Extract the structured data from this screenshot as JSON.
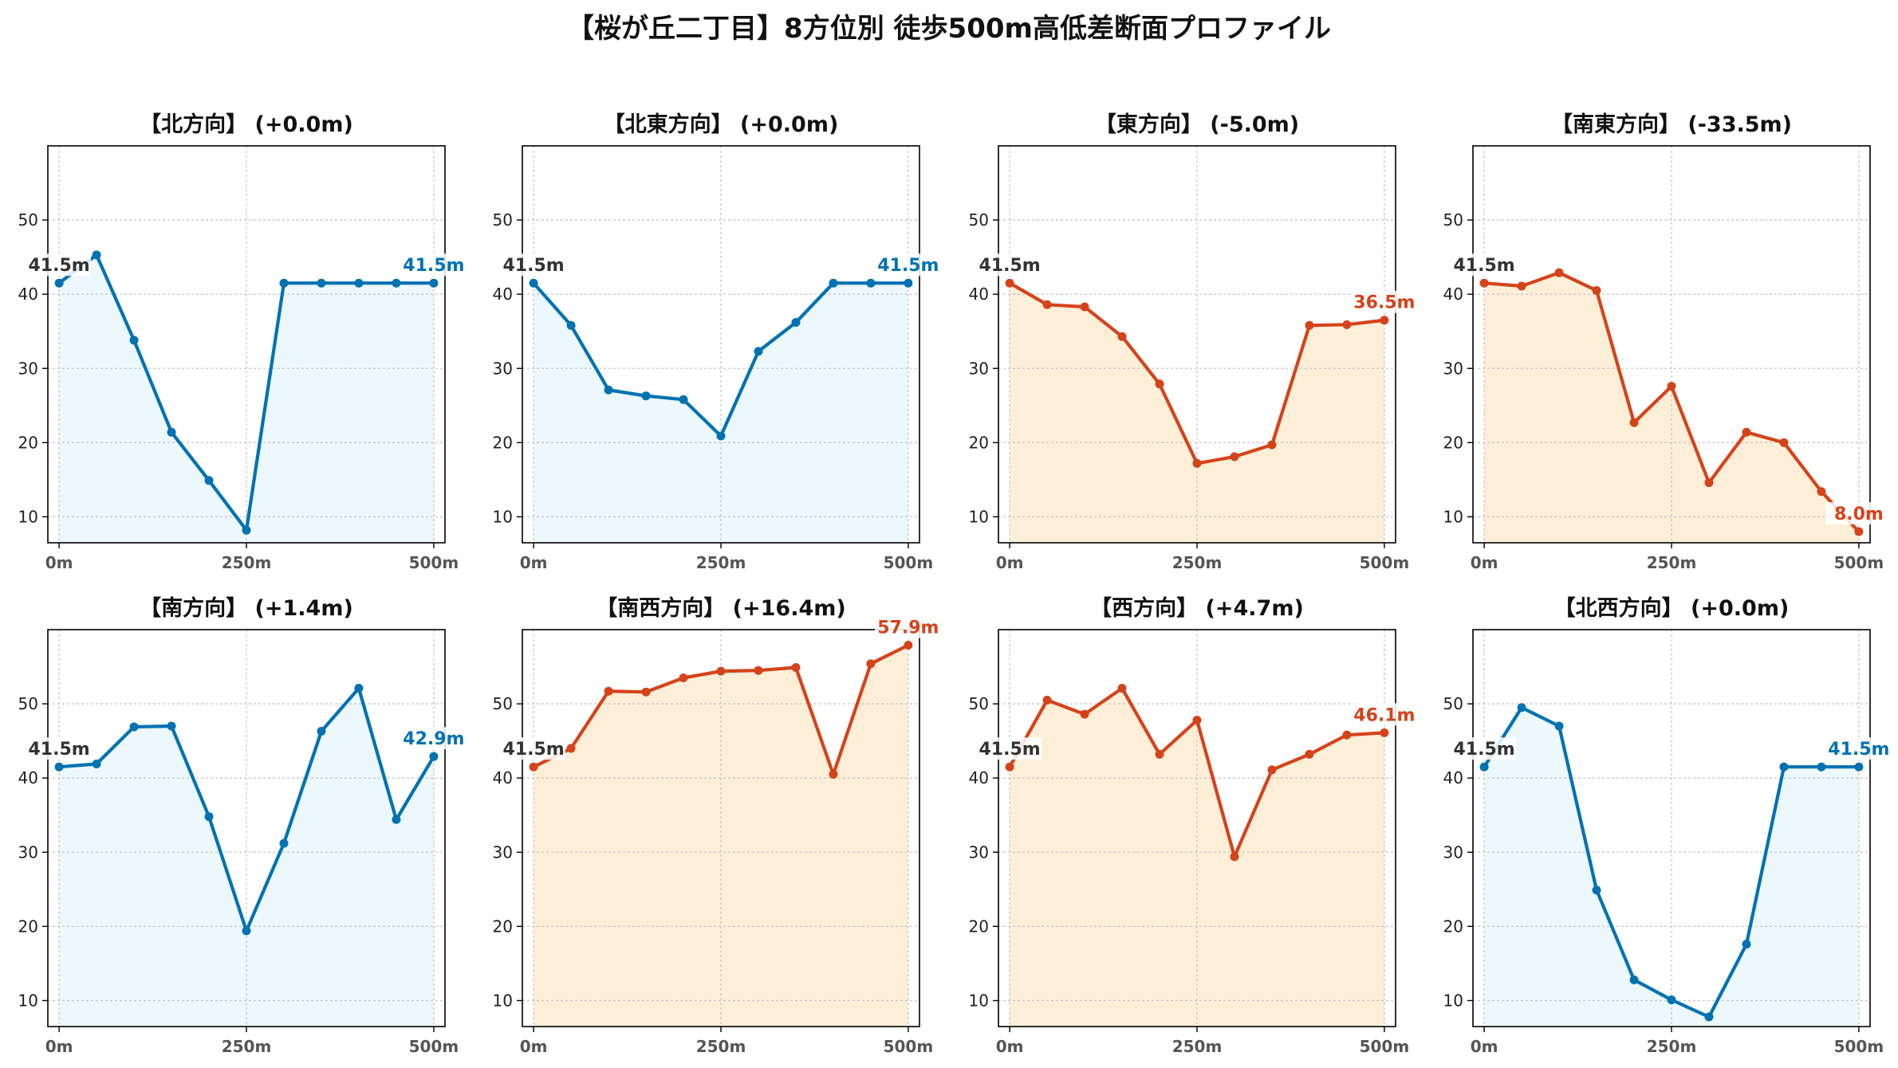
{
  "title": "【桜が丘二丁目】8方位別 徒歩500m高低差断面プロファイル",
  "colors": {
    "up": "#0072b2",
    "up_fill": "#ecf8fc",
    "down": "#d5431b",
    "down_fill": "#fdefd7",
    "start_label": "#333333",
    "grid": "#c8c8c8"
  },
  "chart_data": [
    {
      "type": "line",
      "title": "【北方向】 (+0.0m)",
      "trend": "up",
      "x": [
        0,
        50,
        100,
        150,
        200,
        250,
        300,
        350,
        400,
        450,
        500
      ],
      "values": [
        41.5,
        45.3,
        33.8,
        21.4,
        14.9,
        8.2,
        41.5,
        41.5,
        41.5,
        41.5,
        41.5
      ],
      "start_label": "41.5m",
      "end_label": "41.5m",
      "xtick_labels": [
        "0m",
        "250m",
        "500m"
      ],
      "xticks": [
        0,
        250,
        500
      ],
      "yticks": [
        10,
        20,
        30,
        40,
        50
      ],
      "ylim": [
        6.5,
        60
      ],
      "xlim": [
        -15,
        515
      ],
      "grid": true
    },
    {
      "type": "line",
      "title": "【北東方向】 (+0.0m)",
      "trend": "up",
      "x": [
        0,
        50,
        100,
        150,
        200,
        250,
        300,
        350,
        400,
        450,
        500
      ],
      "values": [
        41.5,
        35.8,
        27.1,
        26.3,
        25.8,
        20.9,
        32.3,
        36.2,
        41.5,
        41.5,
        41.5
      ],
      "start_label": "41.5m",
      "end_label": "41.5m",
      "xtick_labels": [
        "0m",
        "250m",
        "500m"
      ],
      "xticks": [
        0,
        250,
        500
      ],
      "yticks": [
        10,
        20,
        30,
        40,
        50
      ],
      "ylim": [
        6.5,
        60
      ],
      "xlim": [
        -15,
        515
      ],
      "grid": true
    },
    {
      "type": "line",
      "title": "【東方向】 (-5.0m)",
      "trend": "down",
      "x": [
        0,
        50,
        100,
        150,
        200,
        250,
        300,
        350,
        400,
        450,
        500
      ],
      "values": [
        41.5,
        38.6,
        38.3,
        34.3,
        27.9,
        17.2,
        18.1,
        19.7,
        35.8,
        35.9,
        36.5
      ],
      "start_label": "41.5m",
      "end_label": "36.5m",
      "xtick_labels": [
        "0m",
        "250m",
        "500m"
      ],
      "xticks": [
        0,
        250,
        500
      ],
      "yticks": [
        10,
        20,
        30,
        40,
        50
      ],
      "ylim": [
        6.5,
        60
      ],
      "xlim": [
        -15,
        515
      ],
      "grid": true
    },
    {
      "type": "line",
      "title": "【南東方向】 (-33.5m)",
      "trend": "down",
      "x": [
        0,
        50,
        100,
        150,
        200,
        250,
        300,
        350,
        400,
        450,
        500
      ],
      "values": [
        41.5,
        41.1,
        42.9,
        40.5,
        22.7,
        27.6,
        14.6,
        21.4,
        20.0,
        13.4,
        8.0
      ],
      "start_label": "41.5m",
      "end_label": "8.0m",
      "xtick_labels": [
        "0m",
        "250m",
        "500m"
      ],
      "xticks": [
        0,
        250,
        500
      ],
      "yticks": [
        10,
        20,
        30,
        40,
        50
      ],
      "ylim": [
        6.5,
        60
      ],
      "xlim": [
        -15,
        515
      ],
      "grid": true
    },
    {
      "type": "line",
      "title": "【南方向】 (+1.4m)",
      "trend": "up",
      "x": [
        0,
        50,
        100,
        150,
        200,
        250,
        300,
        350,
        400,
        450,
        500
      ],
      "values": [
        41.5,
        41.9,
        46.9,
        47.0,
        34.8,
        19.4,
        31.2,
        46.3,
        52.1,
        34.4,
        42.9
      ],
      "start_label": "41.5m",
      "end_label": "42.9m",
      "xtick_labels": [
        "0m",
        "250m",
        "500m"
      ],
      "xticks": [
        0,
        250,
        500
      ],
      "yticks": [
        10,
        20,
        30,
        40,
        50
      ],
      "ylim": [
        6.5,
        60
      ],
      "xlim": [
        -15,
        515
      ],
      "grid": true
    },
    {
      "type": "line",
      "title": "【南西方向】 (+16.4m)",
      "trend": "down",
      "x": [
        0,
        50,
        100,
        150,
        200,
        250,
        300,
        350,
        400,
        450,
        500
      ],
      "values": [
        41.5,
        44.0,
        51.7,
        51.6,
        53.5,
        54.4,
        54.5,
        54.9,
        40.5,
        55.4,
        57.9
      ],
      "start_label": "41.5m",
      "end_label": "57.9m",
      "xtick_labels": [
        "0m",
        "250m",
        "500m"
      ],
      "xticks": [
        0,
        250,
        500
      ],
      "yticks": [
        10,
        20,
        30,
        40,
        50
      ],
      "ylim": [
        6.5,
        60
      ],
      "xlim": [
        -15,
        515
      ],
      "grid": true
    },
    {
      "type": "line",
      "title": "【西方向】 (+4.7m)",
      "trend": "down",
      "x": [
        0,
        50,
        100,
        150,
        200,
        250,
        300,
        350,
        400,
        450,
        500
      ],
      "values": [
        41.5,
        50.5,
        48.6,
        52.1,
        43.2,
        47.8,
        29.4,
        41.1,
        43.2,
        45.8,
        46.1
      ],
      "start_label": "41.5m",
      "end_label": "46.1m",
      "xtick_labels": [
        "0m",
        "250m",
        "500m"
      ],
      "xticks": [
        0,
        250,
        500
      ],
      "yticks": [
        10,
        20,
        30,
        40,
        50
      ],
      "ylim": [
        6.5,
        60
      ],
      "xlim": [
        -15,
        515
      ],
      "grid": true
    },
    {
      "type": "line",
      "title": "【北西方向】 (+0.0m)",
      "trend": "up",
      "x": [
        0,
        50,
        100,
        150,
        200,
        250,
        300,
        350,
        400,
        450,
        500
      ],
      "values": [
        41.5,
        49.5,
        47.0,
        24.9,
        12.8,
        10.1,
        7.8,
        17.6,
        41.5,
        41.5,
        41.5
      ],
      "start_label": "41.5m",
      "end_label": "41.5m",
      "xtick_labels": [
        "0m",
        "250m",
        "500m"
      ],
      "xticks": [
        0,
        250,
        500
      ],
      "yticks": [
        10,
        20,
        30,
        40,
        50
      ],
      "ylim": [
        6.5,
        60
      ],
      "xlim": [
        -15,
        515
      ],
      "grid": true
    }
  ]
}
